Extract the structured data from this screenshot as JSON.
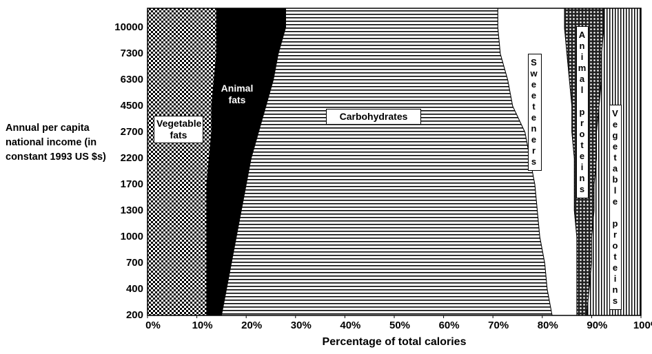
{
  "chart_data": {
    "type": "stacked_area_horizontal",
    "xlabel": "Percentage of total calories",
    "ylabel": "Annual per capita national income (in constant 1993 US $s)",
    "categories": [
      "200",
      "400",
      "700",
      "1000",
      "1300",
      "1700",
      "2200",
      "2700",
      "4500",
      "6300",
      "7300",
      "10000"
    ],
    "xlim": [
      0,
      100
    ],
    "xticks": [
      {
        "value": 0,
        "label": "0%"
      },
      {
        "value": 10,
        "label": "10%"
      },
      {
        "value": 20,
        "label": "20%"
      },
      {
        "value": 30,
        "label": "30%"
      },
      {
        "value": 40,
        "label": "40%"
      },
      {
        "value": 50,
        "label": "50%"
      },
      {
        "value": 60,
        "label": "60%"
      },
      {
        "value": 70,
        "label": "70%"
      },
      {
        "value": 80,
        "label": "80%"
      },
      {
        "value": 90,
        "label": "90%"
      },
      {
        "value": 100,
        "label": "100%"
      }
    ],
    "series": [
      {
        "name": "Vegetable fats",
        "color": "#000000",
        "pattern": "crosshatch",
        "values": [
          12,
          12,
          12,
          12,
          12,
          12,
          12.5,
          13,
          13,
          13.5,
          14,
          14
        ]
      },
      {
        "name": "Animal fats",
        "color": "#000000",
        "pattern": "solid",
        "values": [
          3,
          4,
          5,
          6,
          7,
          8,
          8.5,
          9.5,
          11,
          12,
          12.5,
          14
        ]
      },
      {
        "name": "Carbohydrates",
        "color": "#000000",
        "pattern": "horizontal",
        "values": [
          67,
          65,
          63.5,
          61.5,
          60,
          58.5,
          56.5,
          54,
          50,
          47.5,
          45,
          43
        ]
      },
      {
        "name": "Sweeteners",
        "color": "#ffffff",
        "pattern": "solid",
        "values": [
          5,
          6,
          6.5,
          7.5,
          7.5,
          8,
          9,
          9.5,
          12,
          12.5,
          13.5,
          13.5
        ]
      },
      {
        "name": "Animal proteins",
        "color": "#000000",
        "pattern": "dots",
        "values": [
          2,
          2.5,
          3,
          3,
          4,
          4,
          4.5,
          5,
          5.5,
          6.5,
          7,
          8
        ]
      },
      {
        "name": "Vegetable proteins",
        "color": "#000000",
        "pattern": "vertical",
        "values": [
          11,
          10.5,
          10,
          10,
          9.5,
          9.5,
          9,
          9,
          8.5,
          8,
          8,
          7.5
        ]
      }
    ]
  }
}
